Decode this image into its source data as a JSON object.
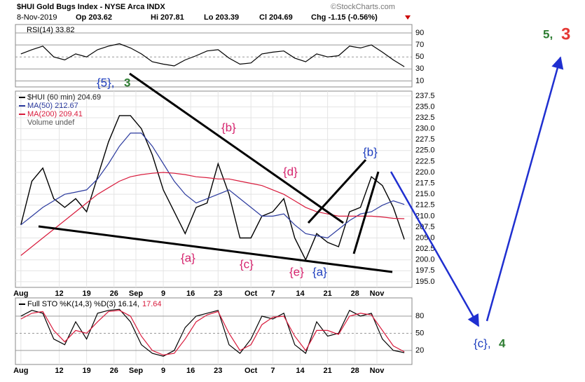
{
  "header": {
    "title": "$HUI Gold Bugs Index - NYSE Arca INDX",
    "source": "©StockCharts.com",
    "date": "8-Nov-2019",
    "open": "Op 203.62",
    "high": "Hi 207.81",
    "low": "Lo 203.39",
    "close": "Cl 204.69",
    "change": "Chg -1.15 (-0.56%)"
  },
  "annotations": [
    "{5},",
    "3",
    "{b}",
    "{d}",
    "{b}",
    "{a}",
    "{c}",
    "{e}",
    "{a}",
    "5,",
    "3",
    "{c},",
    "4"
  ],
  "chart_data": [
    {
      "type": "line",
      "title": "RSI(14) 33.82",
      "x": [
        0,
        2,
        4,
        6,
        8,
        10,
        12,
        14,
        16,
        18,
        20,
        22,
        24,
        26,
        28,
        30,
        32,
        34,
        36,
        38,
        40,
        42,
        44,
        46,
        48,
        50,
        52,
        54,
        56,
        58,
        60,
        62,
        64,
        66,
        68,
        70
      ],
      "series": [
        {
          "name": "RSI(14)",
          "color": "#000000",
          "values": [
            55,
            62,
            68,
            50,
            45,
            55,
            50,
            62,
            68,
            72,
            65,
            55,
            42,
            38,
            35,
            45,
            52,
            60,
            62,
            48,
            38,
            40,
            55,
            58,
            60,
            48,
            42,
            55,
            50,
            52,
            68,
            65,
            70,
            58,
            45,
            33.82
          ]
        }
      ],
      "xlim": [
        -1,
        71.4
      ],
      "ylim": [
        0,
        104
      ],
      "yticks": [
        90,
        70,
        50,
        30,
        10
      ],
      "grid": true
    },
    {
      "type": "line",
      "x": [
        0,
        2,
        4,
        6,
        8,
        10,
        12,
        14,
        16,
        18,
        20,
        22,
        24,
        26,
        28,
        30,
        32,
        34,
        36,
        38,
        40,
        42,
        44,
        46,
        48,
        50,
        52,
        54,
        56,
        58,
        60,
        62,
        64,
        66,
        68,
        70
      ],
      "series": [
        {
          "name": "$HUI (60 min) 204.69",
          "color": "#000000",
          "values": [
            208,
            218,
            221,
            214,
            212,
            214,
            211,
            219,
            227,
            233,
            233,
            230,
            224,
            216,
            211,
            206,
            212,
            213,
            222,
            215,
            205,
            205,
            210,
            211,
            214,
            205,
            200,
            206,
            204,
            203,
            211,
            212,
            219,
            217,
            212,
            204.69
          ]
        },
        {
          "name": "MA(50) 212.67",
          "color": "#2b3a9e",
          "values": [
            208,
            210,
            212,
            213.5,
            215,
            215.5,
            216,
            218.5,
            222,
            226,
            229,
            229,
            226,
            222,
            218,
            215,
            213,
            214,
            215,
            216,
            214,
            212,
            210,
            210,
            210.5,
            208,
            206,
            205.5,
            205,
            207,
            209,
            210.5,
            211,
            212.5,
            213.5,
            212.67
          ]
        },
        {
          "name": "MA(200) 209.41",
          "color": "#d81b3c",
          "values": [
            201,
            203,
            205,
            207,
            209,
            211,
            213,
            215,
            216.5,
            218,
            219,
            219.5,
            219.8,
            220,
            219.8,
            219.5,
            219,
            218.8,
            218.5,
            218.5,
            218,
            217.5,
            217,
            216,
            215,
            213.5,
            212,
            211,
            210.5,
            210,
            210,
            210,
            210,
            209.8,
            209.5,
            209.41
          ]
        }
      ],
      "volume_label": "Volume undef",
      "xlim": [
        -1,
        71.4
      ],
      "ylim": [
        193.7,
        238.6
      ],
      "yticks": [
        237.5,
        {
          "value": 235,
          "label": "235.0"
        },
        232.5,
        {
          "value": 230,
          "label": "230.0"
        },
        227.5,
        {
          "value": 225,
          "label": "225.0"
        },
        222.5,
        {
          "value": 220,
          "label": "220.0"
        },
        217.5,
        {
          "value": 215,
          "label": "215.0"
        },
        212.5,
        {
          "value": 210,
          "label": "210.0"
        },
        207.5,
        {
          "value": 205,
          "label": "205.0"
        },
        202.5,
        {
          "value": 200,
          "label": "200.0"
        },
        197.5,
        {
          "value": 195,
          "label": "195.0"
        }
      ],
      "xticks": [
        {
          "value": 0,
          "label": "Aug"
        },
        {
          "value": 7,
          "label": "12"
        },
        {
          "value": 12,
          "label": "19"
        },
        {
          "value": 17,
          "label": "26"
        },
        {
          "value": 21,
          "label": "Sep"
        },
        {
          "value": 26,
          "label": "9"
        },
        {
          "value": 31,
          "label": "16"
        },
        {
          "value": 36,
          "label": "23"
        },
        {
          "value": 42,
          "label": "Oct"
        },
        {
          "value": 46,
          "label": "7"
        },
        {
          "value": 51,
          "label": "14"
        },
        {
          "value": 56,
          "label": "21"
        },
        {
          "value": 61,
          "label": "28"
        },
        {
          "value": 65,
          "label": "Nov"
        }
      ],
      "grid": true
    },
    {
      "type": "line",
      "x": [
        0,
        2,
        4,
        6,
        8,
        10,
        12,
        14,
        16,
        18,
        20,
        22,
        24,
        26,
        28,
        30,
        32,
        34,
        36,
        38,
        40,
        42,
        44,
        46,
        48,
        50,
        52,
        54,
        56,
        58,
        60,
        62,
        64,
        66,
        68,
        70
      ],
      "series": [
        {
          "name": "Full STO %K(14,3) %D(3) 16.14,",
          "color": "#000000",
          "values": [
            80,
            90,
            85,
            40,
            30,
            70,
            40,
            85,
            90,
            92,
            70,
            30,
            15,
            10,
            20,
            60,
            80,
            85,
            90,
            30,
            15,
            40,
            80,
            75,
            85,
            30,
            15,
            70,
            45,
            50,
            90,
            80,
            85,
            40,
            20,
            16.14
          ]
        },
        {
          "name": "17.64",
          "color": "#d81b3c",
          "values": [
            75,
            85,
            88,
            55,
            35,
            55,
            50,
            70,
            88,
            90,
            80,
            45,
            20,
            12,
            15,
            40,
            70,
            82,
            88,
            50,
            20,
            30,
            65,
            78,
            80,
            45,
            20,
            55,
            55,
            48,
            80,
            85,
            82,
            55,
            28,
            17.64
          ]
        }
      ],
      "xlim": [
        -1,
        71.4
      ],
      "ylim": [
        -4.5,
        111.8
      ],
      "yticks": [
        80,
        50,
        20
      ],
      "xticks": [
        {
          "value": 0,
          "label": "Aug"
        },
        {
          "value": 7,
          "label": "12"
        },
        {
          "value": 12,
          "label": "19"
        },
        {
          "value": 17,
          "label": "26"
        },
        {
          "value": 21,
          "label": "Sep"
        },
        {
          "value": 26,
          "label": "9"
        },
        {
          "value": 31,
          "label": "16"
        },
        {
          "value": 36,
          "label": "23"
        },
        {
          "value": 42,
          "label": "Oct"
        },
        {
          "value": 46,
          "label": "7"
        },
        {
          "value": 51,
          "label": "14"
        },
        {
          "value": 56,
          "label": "21"
        },
        {
          "value": 61,
          "label": "28"
        },
        {
          "value": 65,
          "label": "Nov"
        }
      ],
      "grid": true
    }
  ]
}
